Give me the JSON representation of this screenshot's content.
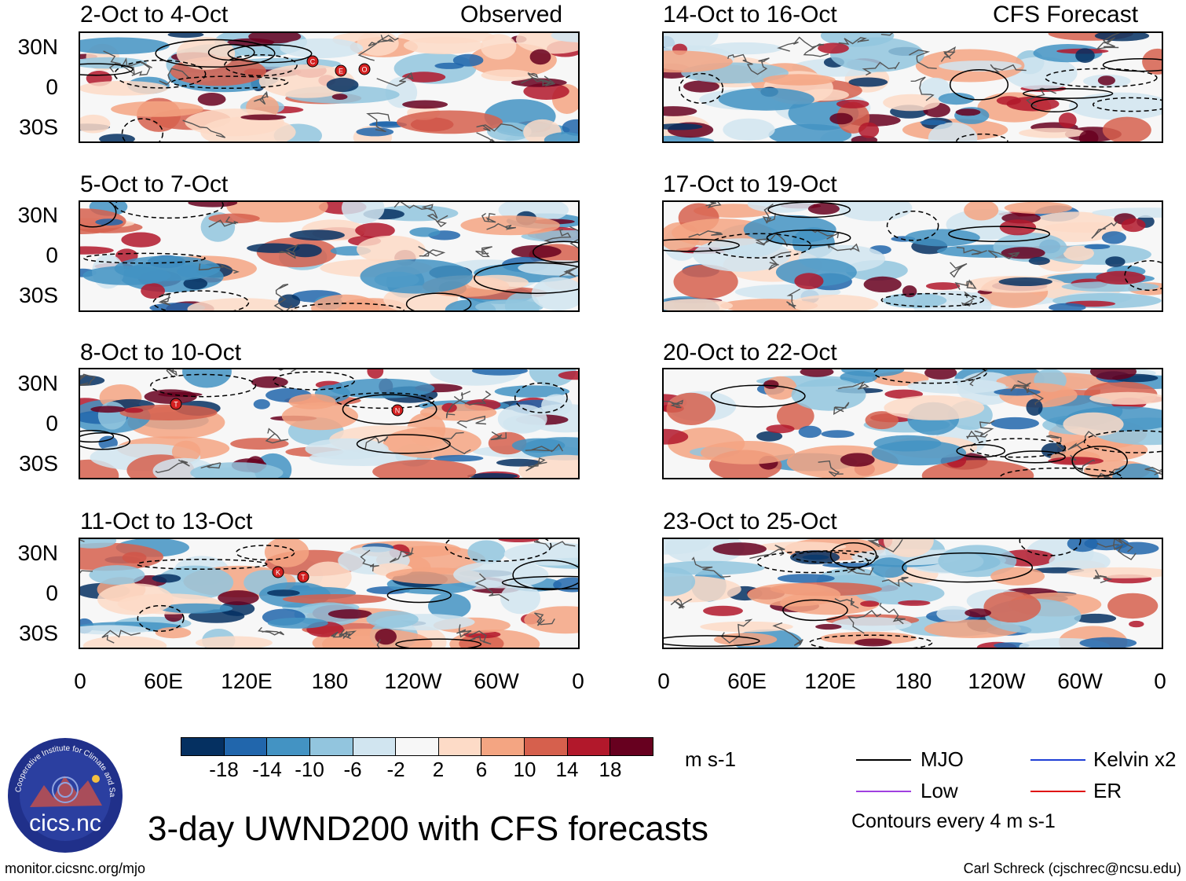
{
  "panels": [
    {
      "title": "2-Oct to 4-Oct",
      "tag": "Observed"
    },
    {
      "title": "14-Oct to 16-Oct",
      "tag": "CFS Forecast"
    },
    {
      "title": "5-Oct to 7-Oct"
    },
    {
      "title": "17-Oct to 19-Oct"
    },
    {
      "title": "8-Oct to 10-Oct"
    },
    {
      "title": "20-Oct to 22-Oct"
    },
    {
      "title": "11-Oct to 13-Oct"
    },
    {
      "title": "23-Oct to 25-Oct"
    }
  ],
  "y_axis_labels": [
    "30N",
    "0",
    "30S"
  ],
  "x_axis_labels": [
    "0",
    "60E",
    "120E",
    "180",
    "120W",
    "60W",
    "0"
  ],
  "storm_markers": {
    "panel1": [
      "C",
      "E",
      "O"
    ],
    "panel3": [
      "T",
      "N"
    ],
    "panel4": [
      "K",
      "T"
    ]
  },
  "colorbar": {
    "colors": [
      "#053061",
      "#2166ac",
      "#4393c3",
      "#92c5de",
      "#d1e5f0",
      "#f7f7f7",
      "#fddbc7",
      "#f4a582",
      "#d6604d",
      "#b2182b",
      "#67001f"
    ],
    "labels": [
      "-18",
      "-14",
      "-10",
      "-6",
      "-2",
      "2",
      "6",
      "10",
      "14",
      "18"
    ],
    "units": "m s-1"
  },
  "legend": {
    "mjo": {
      "label": "MJO",
      "color": "#000000"
    },
    "kelvin": {
      "label": "Kelvin x2",
      "color": "#1f3fd6"
    },
    "low": {
      "label": "Low",
      "color": "#a040e0"
    },
    "er": {
      "label": "ER",
      "color": "#e01010"
    },
    "note": "Contours every 4 m s-1"
  },
  "logo_text": "cics.nc",
  "logo_ring_text": "Cooperative Institute for Climate and Satellites",
  "main_title": "3-day UWND200 with CFS forecasts",
  "footer_left": "monitor.cicsnc.org/mjo",
  "footer_right": "Carl Schreck (cjschrec@ncsu.edu)"
}
